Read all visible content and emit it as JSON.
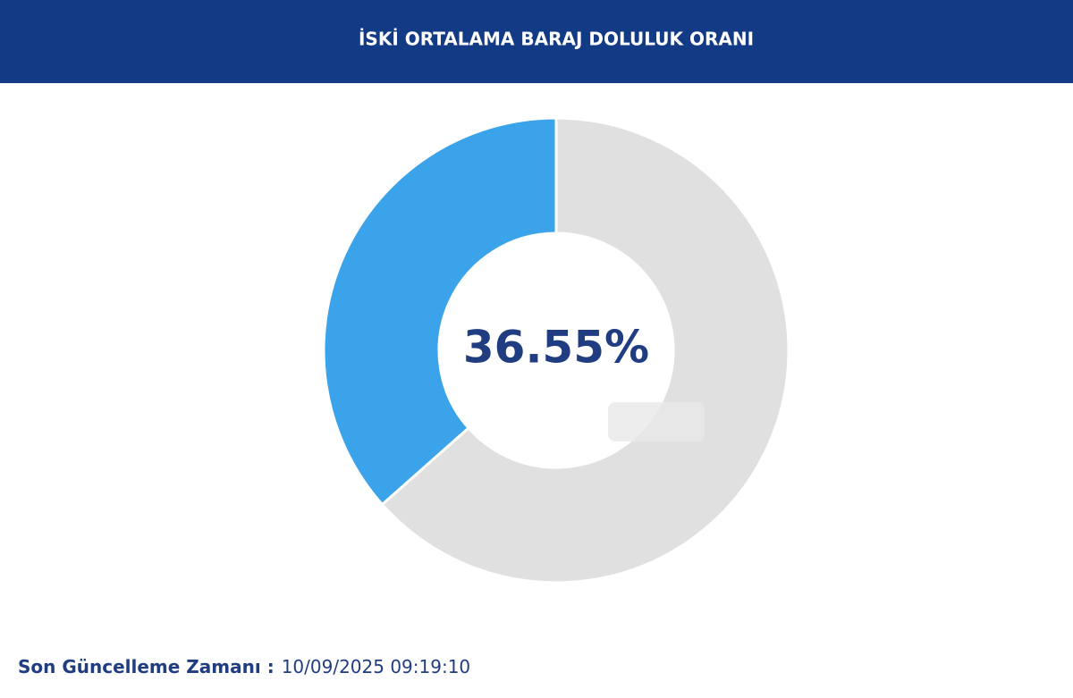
{
  "chart_data": {
    "type": "donut",
    "title": "İSKİ ORTALAMA BARAJ DOLULUK ORANI",
    "values": [
      36.55,
      63.45
    ],
    "value_labels": [
      "36.55%",
      null
    ],
    "colors": [
      "#3aa3ea",
      "#e0e0e0"
    ]
  },
  "footer": {
    "label": "Son Güncelleme Zamanı :",
    "value": "10/09/2025 09:19:10"
  }
}
